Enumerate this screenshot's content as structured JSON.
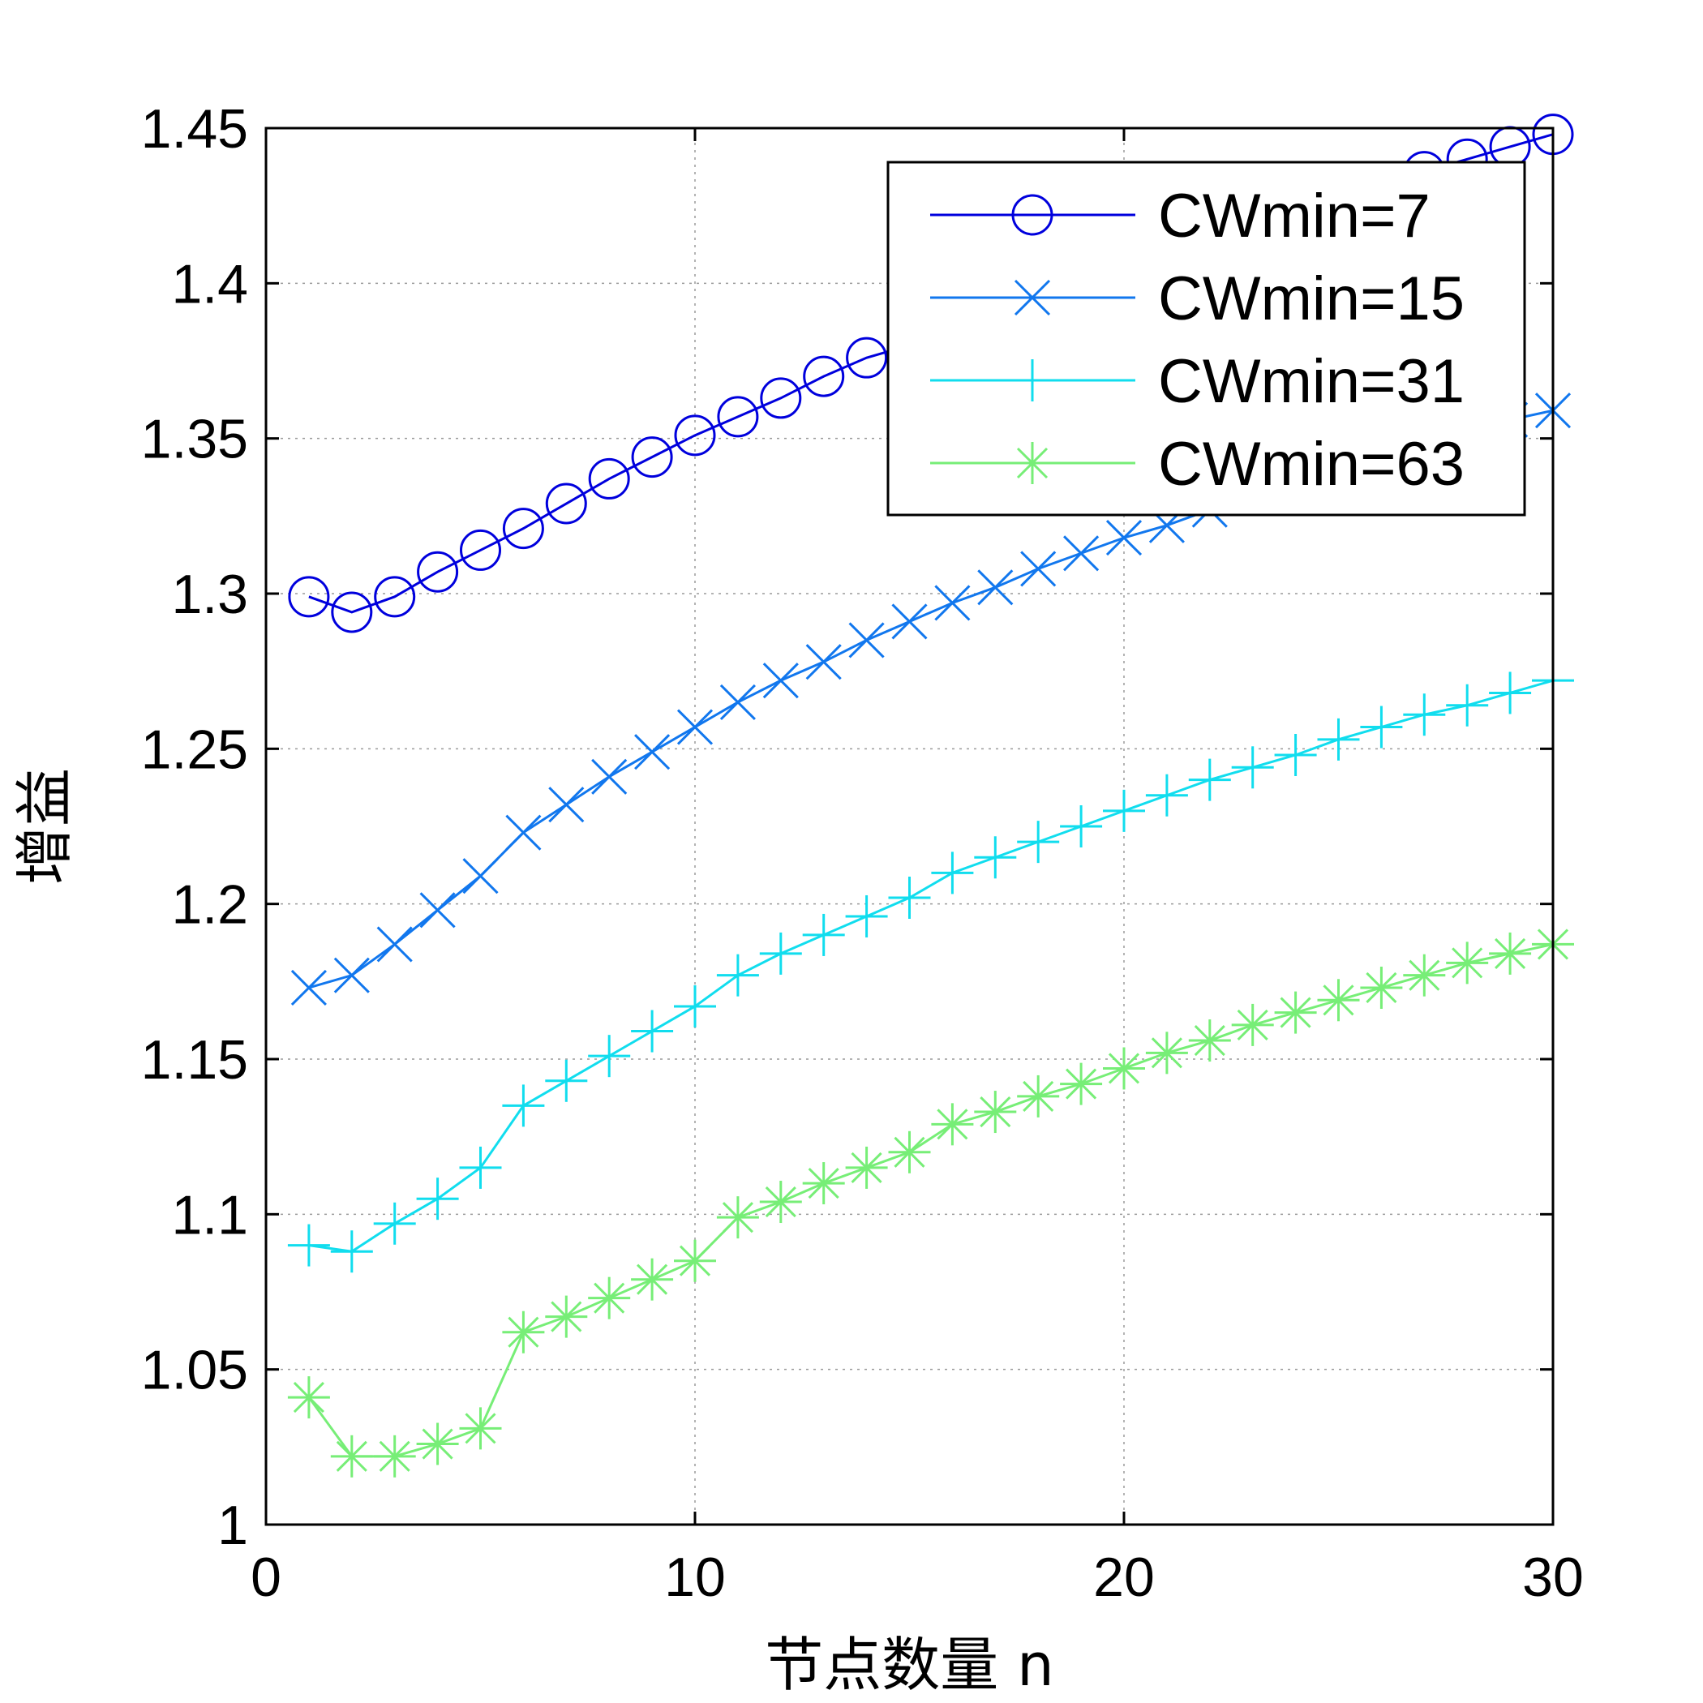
{
  "chart_data": {
    "type": "line",
    "title": "",
    "xlabel": "节点数量 n",
    "ylabel": "增益",
    "xlim": [
      0,
      30
    ],
    "ylim": [
      1,
      1.45
    ],
    "xticks": [
      0,
      10,
      20,
      30
    ],
    "yticks": [
      1,
      1.05,
      1.1,
      1.15,
      1.2,
      1.25,
      1.3,
      1.35,
      1.4,
      1.45
    ],
    "xtick_labels": [
      "0",
      "10",
      "20",
      "30"
    ],
    "ytick_labels": [
      "1",
      "1.05",
      "1.1",
      "1.15",
      "1.2",
      "1.25",
      "1.3",
      "1.35",
      "1.4",
      "1.45"
    ],
    "grid": true,
    "legend_position": "top-right",
    "x": [
      1,
      2,
      3,
      4,
      5,
      6,
      7,
      8,
      9,
      10,
      11,
      12,
      13,
      14,
      15,
      16,
      17,
      18,
      19,
      20,
      21,
      22,
      23,
      24,
      25,
      26,
      27,
      28,
      29,
      30
    ],
    "series": [
      {
        "name": "CWmin=7",
        "color": "#0000dd",
        "marker": "circle",
        "values": [
          1.299,
          1.294,
          1.299,
          1.307,
          1.314,
          1.321,
          1.329,
          1.337,
          1.344,
          1.351,
          1.357,
          1.363,
          1.37,
          1.376,
          1.38,
          1.385,
          1.39,
          1.395,
          1.399,
          1.404,
          1.408,
          1.413,
          1.417,
          1.421,
          1.426,
          1.431,
          1.436,
          1.44,
          1.444,
          1.448
        ]
      },
      {
        "name": "CWmin=15",
        "color": "#1177ee",
        "marker": "x",
        "values": [
          1.173,
          1.177,
          1.187,
          1.198,
          1.209,
          1.223,
          1.232,
          1.241,
          1.249,
          1.257,
          1.265,
          1.272,
          1.278,
          1.285,
          1.291,
          1.297,
          1.302,
          1.308,
          1.313,
          1.318,
          1.322,
          1.327,
          1.331,
          1.336,
          1.34,
          1.344,
          1.348,
          1.352,
          1.356,
          1.359
        ]
      },
      {
        "name": "CWmin=31",
        "color": "#11ddee",
        "marker": "plus",
        "values": [
          1.09,
          1.088,
          1.097,
          1.105,
          1.115,
          1.135,
          1.143,
          1.151,
          1.159,
          1.167,
          1.177,
          1.184,
          1.19,
          1.196,
          1.202,
          1.21,
          1.215,
          1.22,
          1.225,
          1.23,
          1.235,
          1.24,
          1.244,
          1.248,
          1.253,
          1.257,
          1.261,
          1.264,
          1.268,
          1.272
        ]
      },
      {
        "name": "CWmin=63",
        "color": "#77ee77",
        "marker": "star",
        "values": [
          1.041,
          1.022,
          1.022,
          1.026,
          1.031,
          1.062,
          1.067,
          1.073,
          1.079,
          1.085,
          1.099,
          1.104,
          1.11,
          1.115,
          1.12,
          1.129,
          1.133,
          1.138,
          1.142,
          1.147,
          1.152,
          1.156,
          1.161,
          1.165,
          1.169,
          1.173,
          1.177,
          1.181,
          1.184,
          1.187
        ]
      }
    ]
  }
}
